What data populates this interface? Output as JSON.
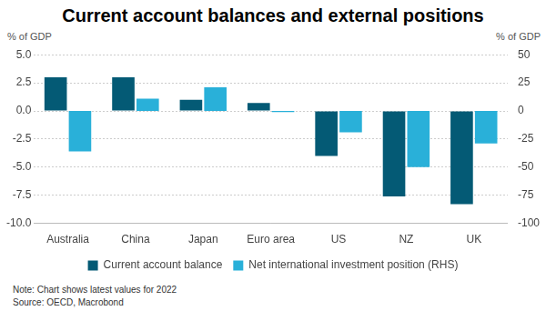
{
  "chart_data": {
    "type": "bar",
    "title": "Current account balances and external positions",
    "ylabel": "% of GDP",
    "y2label": "% of GDP",
    "categories": [
      "Australia",
      "China",
      "Japan",
      "Euro area",
      "US",
      "NZ",
      "UK"
    ],
    "series": [
      {
        "name": "Current account balance",
        "color": "#045a75",
        "values": [
          3.0,
          3.0,
          1.0,
          0.7,
          -4.0,
          -7.6,
          -8.3
        ]
      },
      {
        "name": "Net international investment position (RHS)",
        "color": "#29b0d9",
        "axis": "y2",
        "values": [
          -36,
          11,
          21,
          -1,
          -19,
          -50,
          -29
        ]
      }
    ],
    "ylim": [
      -10,
      5
    ],
    "yticks": [
      {
        "value": -10,
        "label": "-10.0"
      },
      -7.5,
      {
        "value": -5,
        "label": "-5.0"
      },
      -2.5,
      {
        "value": 0,
        "label": "0.0"
      },
      2.5,
      {
        "value": 5,
        "label": "5.0"
      }
    ],
    "y2lim": [
      -100,
      50
    ],
    "y2ticks": [
      -100,
      -75,
      -50,
      -25,
      0,
      25,
      50
    ],
    "grid": true,
    "legend": "bottom",
    "note": "Note: Chart shows latest values for 2022",
    "source": "Source: OECD, Macrobond"
  }
}
